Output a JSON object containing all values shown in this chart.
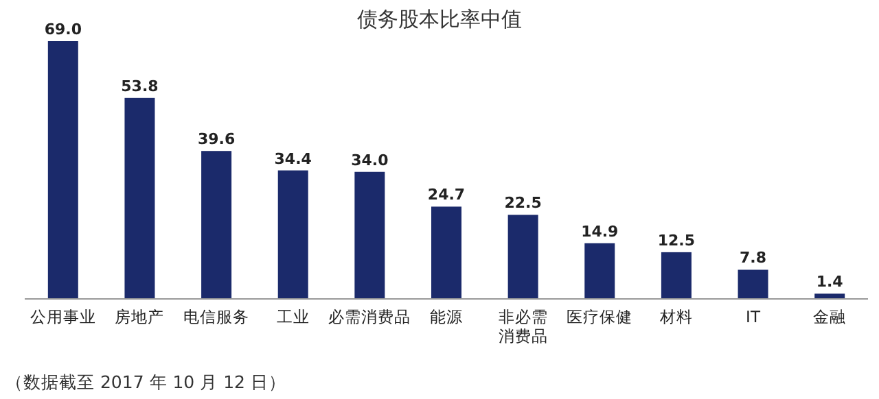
{
  "chart_data": {
    "type": "bar",
    "title": "债务股本比率中值",
    "categories": [
      "公用事业",
      "房地产",
      "电信服务",
      "工业",
      "必需消费品",
      "能源",
      "非必需消费品",
      "医疗保健",
      "材料",
      "IT",
      "金融"
    ],
    "values": [
      69.0,
      53.8,
      39.6,
      34.4,
      34.0,
      24.7,
      22.5,
      14.9,
      12.5,
      7.8,
      1.4
    ],
    "value_labels": [
      "69.0",
      "53.8",
      "39.6",
      "34.4",
      "34.0",
      "24.7",
      "22.5",
      "14.9",
      "12.5",
      "7.8",
      "1.4"
    ],
    "color": "#1b2a6b",
    "annotations": [
      "（数据截至 2017 年 10 月 12 日）"
    ]
  }
}
